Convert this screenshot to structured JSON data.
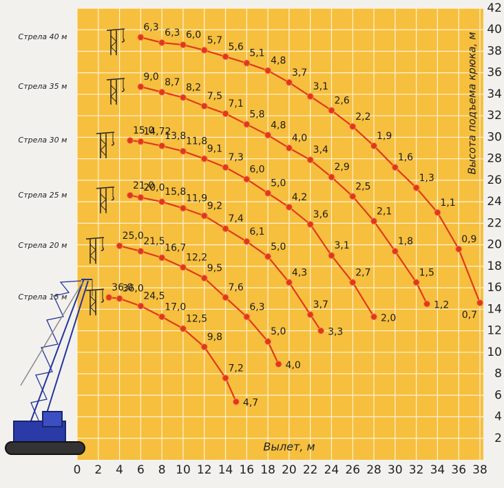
{
  "chart_data": {
    "type": "line",
    "x_label": "Вылет, м",
    "y_label": "Высота подъема крюка, м",
    "xlim": [
      0,
      38
    ],
    "ylim": [
      0,
      42
    ],
    "xticks": [
      0,
      2,
      4,
      6,
      8,
      10,
      12,
      14,
      16,
      18,
      20,
      22,
      24,
      26,
      28,
      30,
      32,
      34,
      36,
      38
    ],
    "yticks": [
      2,
      4,
      6,
      8,
      10,
      12,
      14,
      16,
      18,
      20,
      22,
      24,
      26,
      28,
      30,
      32,
      34,
      36,
      38,
      40,
      42
    ],
    "grid": true,
    "color": "#e0381a",
    "series": [
      {
        "name": "Стрела 40 м",
        "x": [
          6,
          8,
          10,
          12,
          14,
          16,
          18,
          20,
          22,
          24,
          26,
          28,
          30,
          32,
          34,
          36,
          38
        ],
        "values": [
          39.3,
          38.8,
          38.6,
          38.1,
          37.5,
          36.9,
          36.2,
          35.1,
          33.8,
          32.5,
          31.0,
          29.2,
          27.2,
          25.3,
          23.0,
          19.6,
          14.6
        ],
        "load_labels": [
          "6,3",
          "6,3",
          "6,0",
          "5,7",
          "5,6",
          "5,1",
          "4,8",
          "3,7",
          "3,1",
          "2,6",
          "2,2",
          "1,9",
          "1,6",
          "1,3",
          "1,1",
          "0,9",
          "0,7"
        ]
      },
      {
        "name": "Стрела 35 м",
        "x": [
          6,
          8,
          10,
          12,
          14,
          16,
          18,
          20,
          22,
          24,
          26,
          28,
          30,
          32,
          33
        ],
        "values": [
          34.7,
          34.2,
          33.7,
          32.9,
          32.2,
          31.2,
          30.2,
          29.0,
          27.9,
          26.3,
          24.5,
          22.2,
          19.4,
          16.5,
          14.5
        ],
        "load_labels": [
          "9,0",
          "8,7",
          "8,2",
          "7,5",
          "7,1",
          "5,8",
          "4,8",
          "4,0",
          "3,4",
          "2,9",
          "2,5",
          "2,1",
          "1,8",
          "1,5",
          "1,2"
        ]
      },
      {
        "name": "Стрела 30 м",
        "x": [
          5,
          6,
          8,
          10,
          12,
          14,
          16,
          18,
          20,
          22,
          24,
          26,
          28
        ],
        "values": [
          29.7,
          29.6,
          29.2,
          28.7,
          28.0,
          27.2,
          26.1,
          24.8,
          23.5,
          21.9,
          19.0,
          16.5,
          13.3
        ],
        "load_labels": [
          "15,0",
          "14,72",
          "13,8",
          "11,8",
          "9,1",
          "7,3",
          "6,0",
          "5,0",
          "4,2",
          "3,6",
          "3,1",
          "2,7",
          "2,0"
        ]
      },
      {
        "name": "Стрела 25 м",
        "x": [
          5,
          6,
          8,
          10,
          12,
          14,
          16,
          18,
          20,
          22,
          23
        ],
        "values": [
          24.6,
          24.4,
          24.0,
          23.4,
          22.7,
          21.5,
          20.3,
          18.9,
          16.5,
          13.5,
          12.0
        ],
        "load_labels": [
          "21,0",
          "20,0",
          "15,8",
          "11,9",
          "9,2",
          "7,4",
          "6,1",
          "5,0",
          "4,3",
          "3,7",
          "3,3"
        ]
      },
      {
        "name": "Стрела 20 м",
        "x": [
          4,
          6,
          8,
          10,
          12,
          14,
          16,
          18,
          19
        ],
        "values": [
          19.9,
          19.4,
          18.8,
          17.9,
          16.9,
          15.1,
          13.3,
          11.0,
          8.9
        ],
        "load_labels": [
          "25,0",
          "21,5",
          "16,7",
          "12,2",
          "9,5",
          "7,6",
          "6,3",
          "5,0",
          "4,0"
        ]
      },
      {
        "name": "Стрела 15 м",
        "x": [
          3,
          4,
          6,
          8,
          10,
          12,
          14,
          15
        ],
        "values": [
          15.1,
          15.0,
          14.3,
          13.3,
          12.2,
          10.5,
          7.6,
          5.4
        ],
        "load_labels": [
          "36,0",
          "36,0",
          "24,5",
          "17,0",
          "12,5",
          "9,8",
          "7,2",
          "4,7"
        ]
      }
    ]
  }
}
